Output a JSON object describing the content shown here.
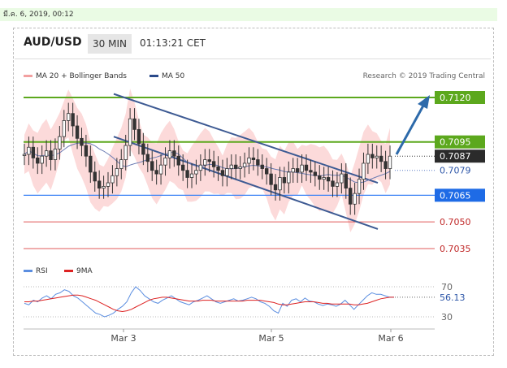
{
  "date_text": "มี.ค. 6, 2019, 00:12",
  "header": {
    "symbol": "AUD/USD",
    "timeframe": "30 MIN",
    "time": "01:13:21 CET"
  },
  "legend": {
    "ma20_bb": "MA 20 + Bollinger Bands",
    "ma50": "MA 50",
    "rsi": "RSI",
    "ma9": "9MA",
    "credit": "Research © 2019 Trading Central"
  },
  "colors": {
    "green": "#5ca81d",
    "blue_line": "#3b82f6",
    "red_line": "#e05b5b",
    "dark_line": "#3d5a93",
    "candle": "#333333",
    "band": "#fcd4d4",
    "price_label": "#2b2b2b",
    "rsi": "#5b8ee0",
    "ma9": "#dd2222"
  },
  "chart_data": {
    "type": "line",
    "title": "AUD/USD",
    "x_ticks": [
      "Mar 3",
      "Mar 5",
      "Mar 6"
    ],
    "ylim": [
      0.703,
      0.7125
    ],
    "levels": [
      {
        "label": "0.7120",
        "value": 0.712,
        "style": "resistance-green"
      },
      {
        "label": "0.7095",
        "value": 0.7095,
        "style": "resistance-green"
      },
      {
        "label": "0.7087",
        "value": 0.7087,
        "style": "last-price"
      },
      {
        "label": "0.7079",
        "value": 0.7079,
        "style": "dotted-blue"
      },
      {
        "label": "0.7065",
        "value": 0.7065,
        "style": "pivot-blue"
      },
      {
        "label": "0.7050",
        "value": 0.705,
        "style": "support-red"
      },
      {
        "label": "0.7035",
        "value": 0.7035,
        "style": "support-red"
      }
    ],
    "price_series": [
      0.7088,
      0.7092,
      0.7086,
      0.7083,
      0.7087,
      0.709,
      0.7085,
      0.7091,
      0.7098,
      0.7107,
      0.7111,
      0.7104,
      0.7097,
      0.7093,
      0.7087,
      0.7078,
      0.7073,
      0.7069,
      0.707,
      0.7072,
      0.7076,
      0.708,
      0.7085,
      0.7093,
      0.7108,
      0.7102,
      0.7094,
      0.7088,
      0.7084,
      0.7079,
      0.7077,
      0.7082,
      0.7086,
      0.709,
      0.7087,
      0.7082,
      0.7079,
      0.7075,
      0.7077,
      0.7079,
      0.7082,
      0.7085,
      0.7084,
      0.7081,
      0.7079,
      0.7076,
      0.708,
      0.7082,
      0.708,
      0.7081,
      0.7083,
      0.7086,
      0.7085,
      0.7082,
      0.708,
      0.7077,
      0.7071,
      0.7068,
      0.7075,
      0.7072,
      0.7078,
      0.708,
      0.7078,
      0.7082,
      0.7079,
      0.7078,
      0.7076,
      0.7074,
      0.7075,
      0.7073,
      0.707,
      0.7072,
      0.7077,
      0.7069,
      0.706,
      0.7066,
      0.7074,
      0.7083,
      0.7088,
      0.7086,
      0.7087,
      0.7084,
      0.708,
      0.7087
    ],
    "channel": {
      "upper": [
        [
          0.0,
          0.7122
        ],
        [
          1.0,
          0.7072
        ]
      ],
      "lower": [
        [
          0.0,
          0.7098
        ],
        [
          1.0,
          0.7046
        ]
      ]
    },
    "rsi": {
      "ticks": [
        "70",
        "30"
      ],
      "last_label": "56.13",
      "ylim": [
        20,
        80
      ],
      "values": [
        48,
        46,
        52,
        50,
        55,
        58,
        54,
        60,
        62,
        66,
        64,
        58,
        55,
        50,
        45,
        40,
        35,
        33,
        30,
        32,
        35,
        40,
        44,
        50,
        62,
        70,
        65,
        58,
        54,
        50,
        48,
        52,
        55,
        58,
        54,
        50,
        48,
        46,
        50,
        52,
        55,
        58,
        54,
        50,
        48,
        50,
        52,
        54,
        51,
        52,
        54,
        56,
        54,
        50,
        48,
        44,
        38,
        35,
        48,
        44,
        52,
        54,
        50,
        55,
        51,
        50,
        47,
        45,
        47,
        46,
        44,
        47,
        52,
        46,
        40,
        46,
        52,
        58,
        62,
        60,
        60,
        58,
        56,
        56
      ],
      "ma9": [
        50,
        50,
        51,
        51,
        52,
        53,
        54,
        55,
        56,
        57,
        58,
        59,
        59,
        58,
        56,
        54,
        52,
        49,
        46,
        43,
        40,
        38,
        37,
        38,
        40,
        43,
        46,
        49,
        52,
        54,
        55,
        56,
        56,
        55,
        54,
        53,
        52,
        51,
        51,
        51,
        52,
        52,
        52,
        51,
        51,
        51,
        51,
        51,
        51,
        51,
        52,
        52,
        52,
        52,
        51,
        50,
        49,
        47,
        46,
        46,
        47,
        48,
        49,
        50,
        50,
        50,
        49,
        48,
        48,
        47,
        47,
        47,
        47,
        47,
        46,
        46,
        47,
        48,
        50,
        52,
        54,
        55,
        56,
        56
      ]
    }
  }
}
